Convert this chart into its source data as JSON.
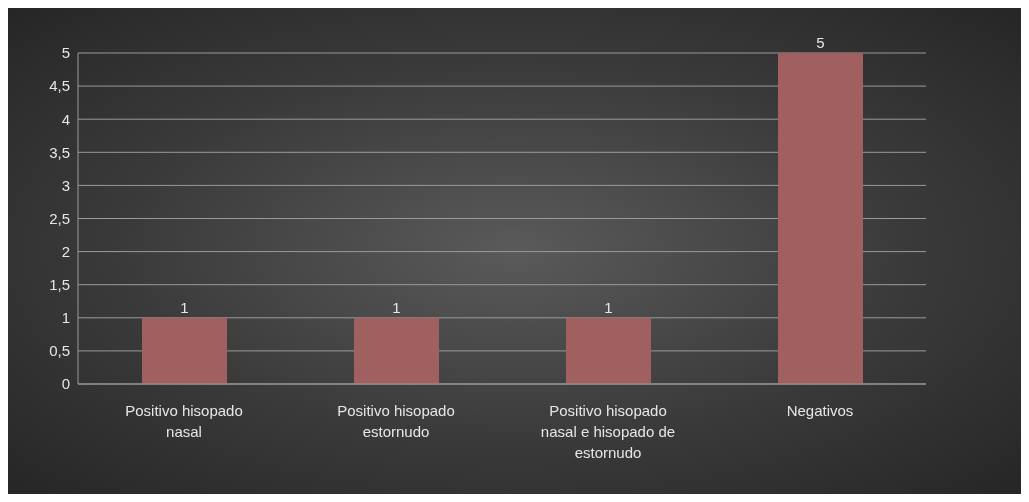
{
  "chart_data": {
    "type": "bar",
    "categories": [
      "Positivo hisopado nasal",
      "Positivo hisopado estornudo",
      "Positivo hisopado nasal e hisopado de estornudo",
      "Negativos"
    ],
    "values": [
      1,
      1,
      1,
      5
    ],
    "color": "#a0605f",
    "ylim": [
      0,
      5
    ],
    "yticks": [
      0,
      {
        "value": 0.5,
        "label": "0,5"
      },
      1,
      {
        "value": 1.5,
        "label": "1,5"
      },
      2,
      {
        "value": 2.5,
        "label": "2,5"
      },
      3,
      {
        "value": 3.5,
        "label": "3,5"
      },
      4,
      {
        "value": 4.5,
        "label": "4,5"
      },
      5
    ],
    "grid": "y",
    "data_labels": true
  }
}
